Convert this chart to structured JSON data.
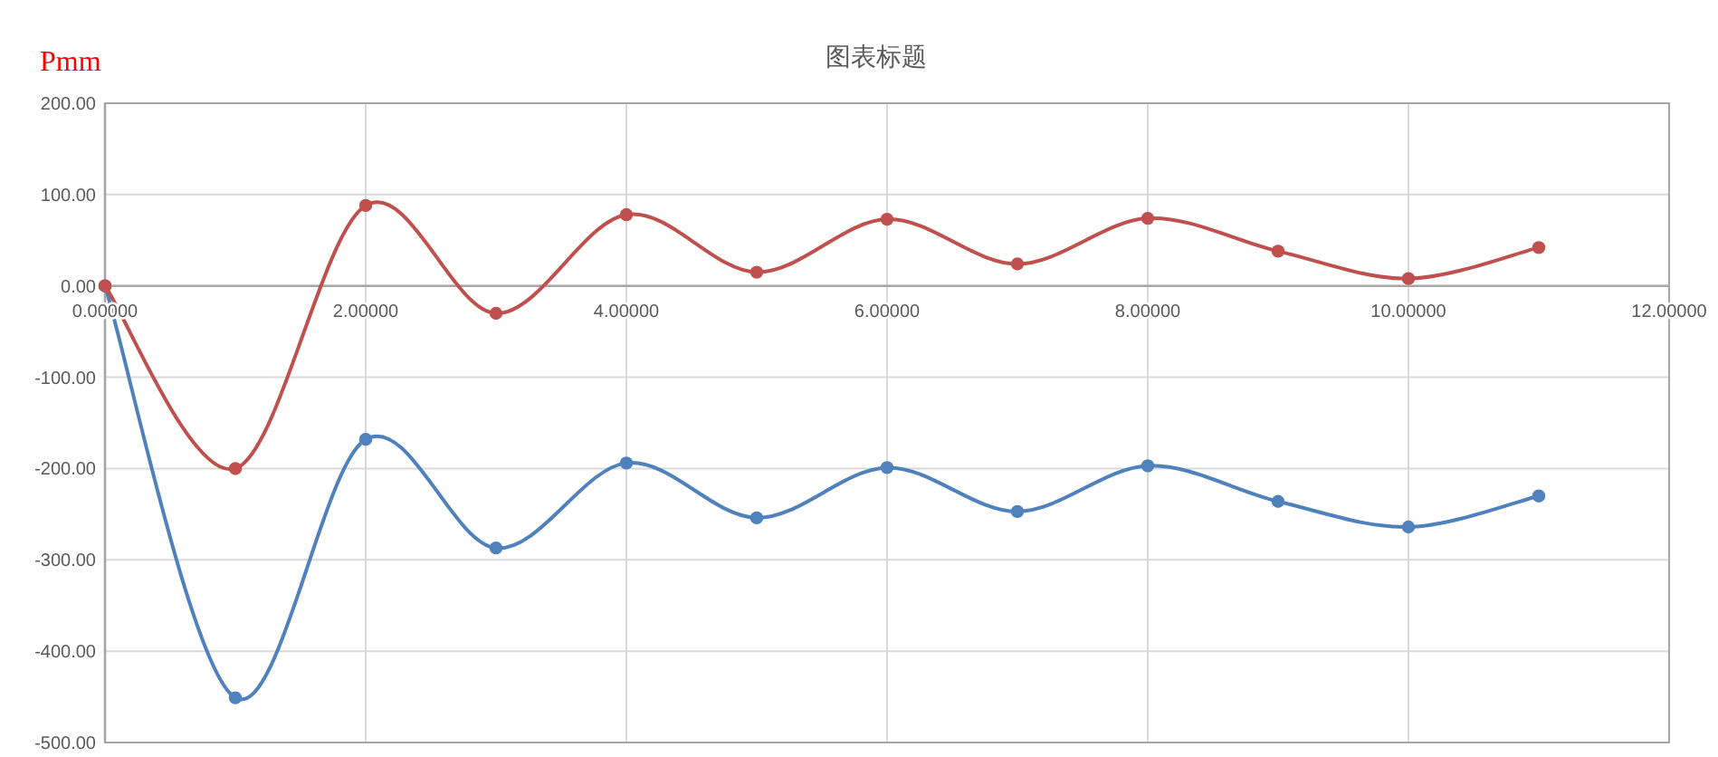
{
  "chart_data": {
    "type": "line",
    "title": "图表标题",
    "ylabel": "Pmm",
    "x": [
      0,
      1,
      2,
      3,
      4,
      5,
      6,
      7,
      8,
      9,
      10,
      11
    ],
    "series": [
      {
        "color": "#4f81bd",
        "values": [
          0,
          -451,
          -168,
          -287,
          -194,
          -254,
          -199,
          -247,
          -197,
          -236,
          -264,
          -230
        ]
      },
      {
        "color": "#c0504d",
        "values": [
          0,
          -200,
          88,
          -30,
          78,
          15,
          73,
          24,
          74,
          38,
          8,
          42
        ]
      }
    ],
    "xlim": [
      0,
      12
    ],
    "ylim": [
      -500,
      200
    ],
    "xticks": [
      {
        "value": 0,
        "label": "0.00000"
      },
      {
        "value": 2,
        "label": "2.00000"
      },
      {
        "value": 4,
        "label": "4.00000"
      },
      {
        "value": 6,
        "label": "6.00000"
      },
      {
        "value": 8,
        "label": "8.00000"
      },
      {
        "value": 10,
        "label": "10.00000"
      },
      {
        "value": 12,
        "label": "12.00000"
      }
    ],
    "yticks": [
      {
        "value": 200,
        "label": "200.00"
      },
      {
        "value": 100,
        "label": "100.00"
      },
      {
        "value": 0,
        "label": "0.00"
      },
      {
        "value": -100,
        "label": "-100.00"
      },
      {
        "value": -200,
        "label": "-200.00"
      },
      {
        "value": -300,
        "label": "-300.00"
      },
      {
        "value": -400,
        "label": "-400.00"
      },
      {
        "value": -500,
        "label": "-500.00"
      }
    ],
    "grid": true,
    "marker": "circle",
    "line_style": "solid"
  }
}
